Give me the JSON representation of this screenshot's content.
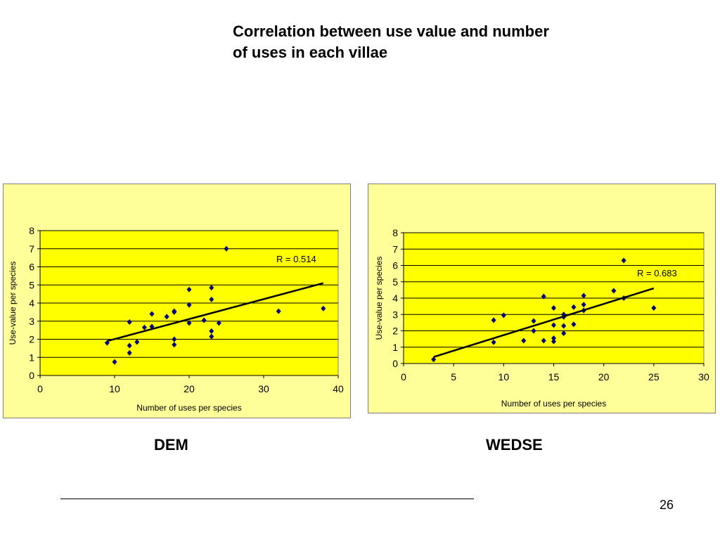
{
  "slide": {
    "title_line1": "Correlation between use value and number",
    "title_line2": "of uses in each villae",
    "page_number": "26"
  },
  "colors": {
    "panel_background": "#ffff99",
    "plot_background": "#ffff00",
    "marker": "#000080",
    "trendline": "#000000"
  },
  "chart_data": [
    {
      "id": "dem",
      "caption": "DEM",
      "type": "scatter",
      "xlabel": "Number of uses per species",
      "ylabel": "Use-value per species",
      "xlim": [
        0,
        40
      ],
      "ylim": [
        0,
        8
      ],
      "xticks": [
        0,
        10,
        20,
        30,
        40
      ],
      "yticks": [
        0,
        1,
        2,
        3,
        4,
        5,
        6,
        7,
        8
      ],
      "grid": "horizontal",
      "marker": "diamond",
      "annotation": "R = 0.514",
      "trendline": {
        "x": [
          9,
          38
        ],
        "y": [
          1.9,
          5.1
        ]
      },
      "points": [
        {
          "x": 9,
          "y": 1.8
        },
        {
          "x": 10,
          "y": 0.75
        },
        {
          "x": 12,
          "y": 1.25
        },
        {
          "x": 12,
          "y": 1.65
        },
        {
          "x": 12,
          "y": 2.95
        },
        {
          "x": 13,
          "y": 1.85
        },
        {
          "x": 14,
          "y": 2.65
        },
        {
          "x": 15,
          "y": 2.7
        },
        {
          "x": 15,
          "y": 3.4
        },
        {
          "x": 17,
          "y": 3.25
        },
        {
          "x": 18,
          "y": 1.7
        },
        {
          "x": 18,
          "y": 2.0
        },
        {
          "x": 18,
          "y": 3.5
        },
        {
          "x": 18,
          "y": 3.55
        },
        {
          "x": 20,
          "y": 2.9
        },
        {
          "x": 20,
          "y": 3.9
        },
        {
          "x": 20,
          "y": 4.75
        },
        {
          "x": 22,
          "y": 3.05
        },
        {
          "x": 23,
          "y": 2.15
        },
        {
          "x": 23,
          "y": 2.45
        },
        {
          "x": 23,
          "y": 4.2
        },
        {
          "x": 23,
          "y": 4.85
        },
        {
          "x": 24,
          "y": 2.9
        },
        {
          "x": 25,
          "y": 7.0
        },
        {
          "x": 32,
          "y": 3.55
        },
        {
          "x": 38,
          "y": 3.7
        }
      ]
    },
    {
      "id": "wedse",
      "caption": "WEDSE",
      "type": "scatter",
      "xlabel": "Number of uses per species",
      "ylabel": "Use-value per species",
      "xlim": [
        0,
        30
      ],
      "ylim": [
        0,
        8
      ],
      "xticks": [
        0,
        5,
        10,
        15,
        20,
        25,
        30
      ],
      "yticks": [
        0,
        1,
        2,
        3,
        4,
        5,
        6,
        7,
        8
      ],
      "grid": "horizontal",
      "marker": "diamond",
      "annotation": "R = 0.683",
      "trendline": {
        "x": [
          3,
          25
        ],
        "y": [
          0.4,
          4.6
        ]
      },
      "points": [
        {
          "x": 3,
          "y": 0.25
        },
        {
          "x": 9,
          "y": 1.3
        },
        {
          "x": 9,
          "y": 2.65
        },
        {
          "x": 10,
          "y": 2.95
        },
        {
          "x": 12,
          "y": 1.4
        },
        {
          "x": 13,
          "y": 2.0
        },
        {
          "x": 13,
          "y": 2.6
        },
        {
          "x": 14,
          "y": 1.4
        },
        {
          "x": 14,
          "y": 4.1
        },
        {
          "x": 15,
          "y": 1.35
        },
        {
          "x": 15,
          "y": 1.55
        },
        {
          "x": 15,
          "y": 2.35
        },
        {
          "x": 15,
          "y": 3.4
        },
        {
          "x": 16,
          "y": 1.85
        },
        {
          "x": 16,
          "y": 2.3
        },
        {
          "x": 16,
          "y": 2.85
        },
        {
          "x": 16,
          "y": 3.0
        },
        {
          "x": 17,
          "y": 2.4
        },
        {
          "x": 17,
          "y": 3.45
        },
        {
          "x": 18,
          "y": 3.25
        },
        {
          "x": 18,
          "y": 3.6
        },
        {
          "x": 18,
          "y": 4.15
        },
        {
          "x": 21,
          "y": 4.45
        },
        {
          "x": 22,
          "y": 4.0
        },
        {
          "x": 22,
          "y": 6.3
        },
        {
          "x": 25,
          "y": 3.4
        }
      ]
    }
  ]
}
